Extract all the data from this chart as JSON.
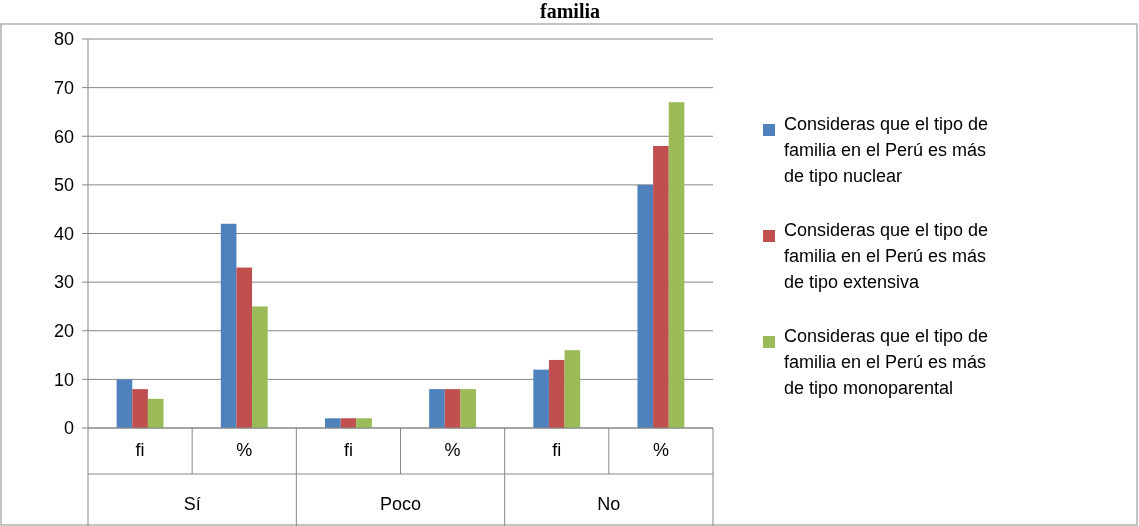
{
  "chart_data": {
    "type": "bar",
    "title": "familia",
    "categories": [
      "fi",
      "%",
      "fi",
      "%",
      "fi",
      "%"
    ],
    "series": [
      {
        "name": "Consideras que el tipo de familia en el Perú es más de tipo nuclear",
        "color": "#4f81bd",
        "values": [
          10,
          42,
          2,
          8,
          12,
          50
        ]
      },
      {
        "name": "Consideras que el tipo de familia en el Perú es más de tipo extensiva",
        "color": "#c0504d",
        "values": [
          8,
          33,
          2,
          8,
          14,
          58
        ]
      },
      {
        "name": "Consideras que el tipo de familia en el Perú es más de tipo monoparental",
        "color": "#9bbb59",
        "values": [
          6,
          25,
          2,
          8,
          16,
          67
        ]
      }
    ],
    "annotations": [
      "Sí",
      "Poco",
      "No"
    ],
    "ylim": [
      0,
      80
    ],
    "yticks": [
      0,
      10,
      20,
      30,
      40,
      50,
      60,
      70,
      80
    ],
    "grid": "y",
    "legend": "right"
  }
}
